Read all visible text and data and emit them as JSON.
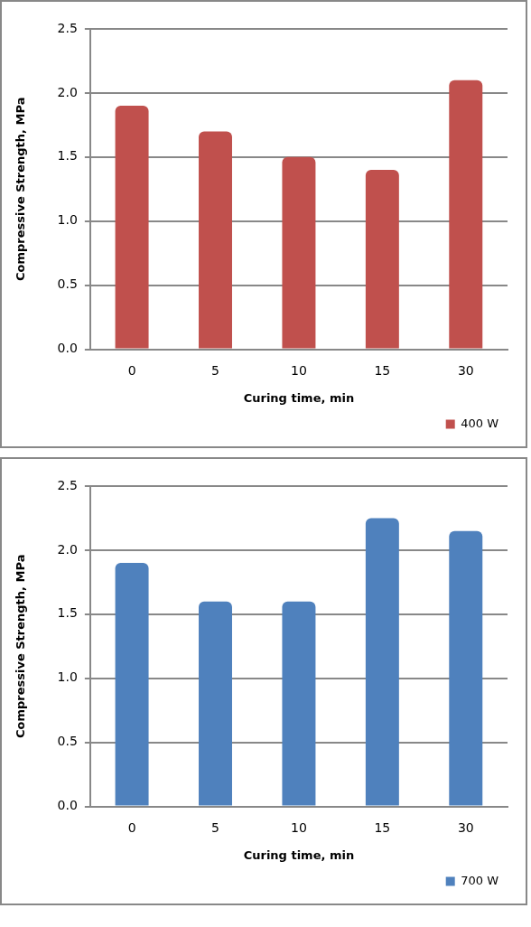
{
  "chart_data": [
    {
      "type": "bar",
      "xlabel": "Curing time, min",
      "ylabel": "Compressive Strength, MPa",
      "categories": [
        "0",
        "5",
        "10",
        "15",
        "30"
      ],
      "series": [
        {
          "name": "400 W",
          "color": "#c0504d",
          "values": [
            1.9,
            1.7,
            1.5,
            1.4,
            2.1
          ]
        }
      ],
      "ylim": [
        0,
        2.5
      ],
      "yticks": [
        {
          "value": 0,
          "label": "0.0"
        },
        {
          "value": 0.5,
          "label": "0.5"
        },
        {
          "value": 1,
          "label": "1.0"
        },
        {
          "value": 1.5,
          "label": "1.5"
        },
        {
          "value": 2,
          "label": "2.0"
        },
        {
          "value": 2.5,
          "label": "2.5"
        }
      ],
      "grid": "y",
      "legend": "bottom right"
    },
    {
      "type": "bar",
      "xlabel": "Curing time, min",
      "ylabel": "Compressive Strength, MPa",
      "categories": [
        "0",
        "5",
        "10",
        "15",
        "30"
      ],
      "series": [
        {
          "name": "700 W",
          "color": "#4f81bd",
          "values": [
            1.9,
            1.6,
            1.6,
            2.25,
            2.15
          ]
        }
      ],
      "ylim": [
        0,
        2.5
      ],
      "yticks": [
        {
          "value": 0,
          "label": "0.0"
        },
        {
          "value": 0.5,
          "label": "0.5"
        },
        {
          "value": 1,
          "label": "1.0"
        },
        {
          "value": 1.5,
          "label": "1.5"
        },
        {
          "value": 2,
          "label": "2.0"
        },
        {
          "value": 2.5,
          "label": "2.5"
        }
      ],
      "grid": "y",
      "legend": "bottom right"
    }
  ]
}
